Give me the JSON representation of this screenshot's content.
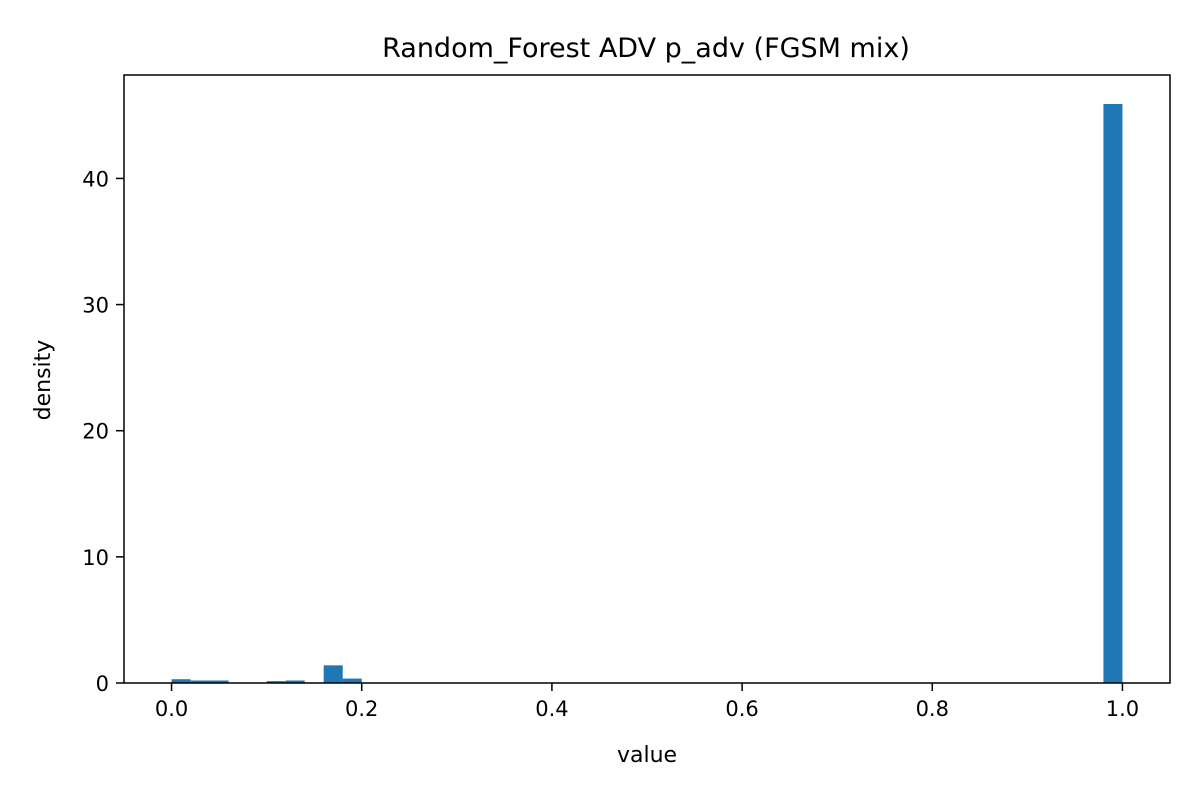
{
  "chart_data": {
    "type": "bar",
    "title": "Random_Forest ADV p_adv (FGSM mix)",
    "xlabel": "value",
    "ylabel": "density",
    "xlim": [
      -0.05,
      1.05
    ],
    "ylim": [
      0,
      48.2
    ],
    "xticks": [
      0.0,
      0.2,
      0.4,
      0.6,
      0.8,
      1.0
    ],
    "xtick_labels": [
      "0.0",
      "0.2",
      "0.4",
      "0.6",
      "0.8",
      "1.0"
    ],
    "yticks": [
      0,
      10,
      20,
      30,
      40
    ],
    "ytick_labels": [
      "0",
      "10",
      "20",
      "30",
      "40"
    ],
    "grid": false,
    "legend": "none",
    "bar_color": "#1f77b4",
    "bins": [
      {
        "x0": 0.0,
        "x1": 0.02,
        "value": 0.3
      },
      {
        "x0": 0.02,
        "x1": 0.04,
        "value": 0.2
      },
      {
        "x0": 0.04,
        "x1": 0.06,
        "value": 0.2
      },
      {
        "x0": 0.1,
        "x1": 0.12,
        "value": 0.15
      },
      {
        "x0": 0.12,
        "x1": 0.14,
        "value": 0.2
      },
      {
        "x0": 0.16,
        "x1": 0.18,
        "value": 1.4
      },
      {
        "x0": 0.18,
        "x1": 0.2,
        "value": 0.35
      },
      {
        "x0": 0.98,
        "x1": 1.0,
        "value": 45.9
      }
    ]
  }
}
